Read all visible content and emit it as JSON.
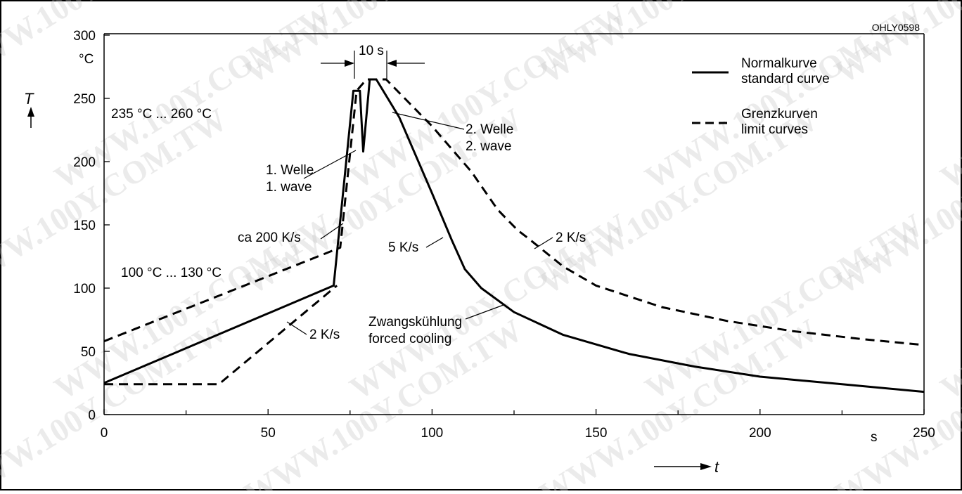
{
  "page": {
    "figure_code": "OHLY0598",
    "watermark_text": "WWW.100Y.COM.TW"
  },
  "chart_data": {
    "type": "line",
    "title": "",
    "xlabel": "t",
    "x_unit": "s",
    "ylabel": "T",
    "y_unit": "°C",
    "xlim": [
      0,
      250
    ],
    "ylim": [
      0,
      300
    ],
    "x_ticks": [
      0,
      50,
      100,
      150,
      200,
      250
    ],
    "y_ticks": [
      0,
      50,
      100,
      150,
      200,
      250,
      300
    ],
    "grid": false,
    "legend_position": "top-right",
    "legend": [
      {
        "label_de": "Normalkurve",
        "label_en": "standard curve",
        "style": "solid"
      },
      {
        "label_de": "Grenzkurven",
        "label_en": "limit curves",
        "style": "dashed"
      }
    ],
    "series": [
      {
        "name": "Normalkurve",
        "style": "solid",
        "points": [
          [
            0,
            25
          ],
          [
            70,
            102
          ],
          [
            76,
            256
          ],
          [
            78,
            256
          ],
          [
            79,
            208
          ],
          [
            81,
            265
          ],
          [
            83,
            265
          ],
          [
            90,
            235
          ],
          [
            100,
            175
          ],
          [
            106,
            138
          ],
          [
            110,
            115
          ],
          [
            115,
            100
          ],
          [
            125,
            81
          ],
          [
            140,
            63
          ],
          [
            160,
            48
          ],
          [
            180,
            38
          ],
          [
            200,
            30
          ],
          [
            225,
            24
          ],
          [
            250,
            18
          ]
        ]
      },
      {
        "name": "Grenzkurven",
        "style": "dashed",
        "points": [
          [
            0,
            58
          ],
          [
            72,
            132
          ],
          [
            77,
            256
          ],
          [
            80,
            265
          ],
          [
            86,
            265
          ],
          [
            100,
            228
          ],
          [
            112,
            192
          ],
          [
            120,
            162
          ],
          [
            126,
            146
          ],
          [
            130,
            138
          ],
          [
            140,
            117
          ],
          [
            150,
            102
          ],
          [
            170,
            85
          ],
          [
            190,
            74
          ],
          [
            210,
            66
          ],
          [
            230,
            60
          ],
          [
            250,
            55
          ]
        ]
      },
      {
        "name": "Grenzkurven",
        "style": "dashed",
        "points": [
          [
            0,
            24
          ],
          [
            35,
            24
          ],
          [
            71,
            102
          ]
        ]
      }
    ],
    "annotations": {
      "peak_range": "235 °C ... 260 °C",
      "preheat_range": "100 °C ... 130 °C",
      "wave1_de": "1. Welle",
      "wave1_en": "1. wave",
      "wave2_de": "2. Welle",
      "wave2_en": "2. wave",
      "rate_heat": "ca 200 K/s",
      "rate_preheat": "2 K/s",
      "rate_cool_normal": "5 K/s",
      "rate_cool_limit": "2 K/s",
      "forced_de": "Zwangskühlung",
      "forced_en": "forced cooling",
      "dwell": "10 s"
    }
  }
}
